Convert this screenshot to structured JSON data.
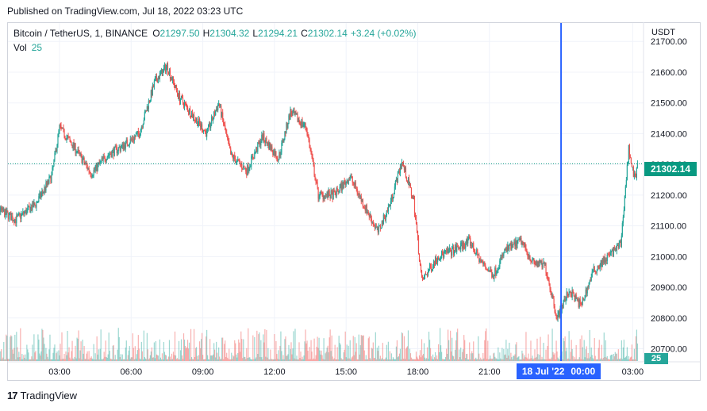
{
  "header": {
    "published_text": "Published on TradingView.com, Jul 18, 2022 03:23 UTC"
  },
  "legend": {
    "symbol": "Bitcoin / TetherUS, 1, BINANCE",
    "open_key": "O",
    "open": "21297.50",
    "high_key": "H",
    "high": "21304.32",
    "low_key": "L",
    "low": "21294.21",
    "close_key": "C",
    "close": "21302.14",
    "change": "+3.24 (+0.02%)",
    "volume_key": "Vol",
    "volume": "25"
  },
  "price_axis": {
    "currency": "USDT",
    "ticks": [
      "21700.00",
      "21600.00",
      "21500.00",
      "21400.00",
      "21300.00",
      "21200.00",
      "21100.00",
      "21000.00",
      "20900.00",
      "20800.00",
      "20700.00"
    ],
    "last_price_label": "21302.14",
    "last_volume_label": "25"
  },
  "time_axis": {
    "ticks": [
      "03:00",
      "06:00",
      "09:00",
      "12:00",
      "15:00",
      "18:00",
      "21:00",
      "00:00",
      "03:00"
    ],
    "crosshair_date": "18 Jul '22",
    "crosshair_time": "00:00"
  },
  "footer": {
    "logo_mark": "17",
    "brand": "TradingView"
  },
  "colors": {
    "up": "#26a69a",
    "down": "#ef5350",
    "crosshair": "#2962ff",
    "last_price": "#089981",
    "grid": "#f0f3fa"
  },
  "chart_data": {
    "type": "candlestick",
    "symbol": "BTCUSDT",
    "interval_minutes": 1,
    "ylim": [
      20660,
      21760
    ],
    "path_keypoints": [
      {
        "t": "00:00",
        "price": 21300
      },
      {
        "t": "00:30",
        "price": 21150
      },
      {
        "t": "01:10",
        "price": 21120
      },
      {
        "t": "02:00",
        "price": 21170
      },
      {
        "t": "02:40",
        "price": 21260
      },
      {
        "t": "03:00",
        "price": 21420
      },
      {
        "t": "03:40",
        "price": 21350
      },
      {
        "t": "04:20",
        "price": 21270
      },
      {
        "t": "05:00",
        "price": 21330
      },
      {
        "t": "05:40",
        "price": 21360
      },
      {
        "t": "06:20",
        "price": 21400
      },
      {
        "t": "07:00",
        "price": 21570
      },
      {
        "t": "07:30",
        "price": 21620
      },
      {
        "t": "08:00",
        "price": 21520
      },
      {
        "t": "08:40",
        "price": 21450
      },
      {
        "t": "09:10",
        "price": 21400
      },
      {
        "t": "09:40",
        "price": 21500
      },
      {
        "t": "10:10",
        "price": 21330
      },
      {
        "t": "10:50",
        "price": 21280
      },
      {
        "t": "11:30",
        "price": 21390
      },
      {
        "t": "12:10",
        "price": 21320
      },
      {
        "t": "12:40",
        "price": 21470
      },
      {
        "t": "13:20",
        "price": 21420
      },
      {
        "t": "13:50",
        "price": 21200
      },
      {
        "t": "14:30",
        "price": 21200
      },
      {
        "t": "15:10",
        "price": 21260
      },
      {
        "t": "15:40",
        "price": 21180
      },
      {
        "t": "16:20",
        "price": 21080
      },
      {
        "t": "16:50",
        "price": 21170
      },
      {
        "t": "17:20",
        "price": 21310
      },
      {
        "t": "17:50",
        "price": 21180
      },
      {
        "t": "18:10",
        "price": 20920
      },
      {
        "t": "18:50",
        "price": 21000
      },
      {
        "t": "19:30",
        "price": 21020
      },
      {
        "t": "20:10",
        "price": 21050
      },
      {
        "t": "20:40",
        "price": 20980
      },
      {
        "t": "21:10",
        "price": 20940
      },
      {
        "t": "21:40",
        "price": 21020
      },
      {
        "t": "22:20",
        "price": 21050
      },
      {
        "t": "22:50",
        "price": 20980
      },
      {
        "t": "23:20",
        "price": 20970
      },
      {
        "t": "23:50",
        "price": 20800
      },
      {
        "t": "00:20",
        "price": 20890
      },
      {
        "t": "00:50",
        "price": 20840
      },
      {
        "t": "01:20",
        "price": 20950
      },
      {
        "t": "01:50",
        "price": 20990
      },
      {
        "t": "02:30",
        "price": 21040
      },
      {
        "t": "02:50",
        "price": 21350
      },
      {
        "t": "03:05",
        "price": 21250
      },
      {
        "t": "03:13",
        "price": 21302.14
      }
    ],
    "last": {
      "open": 21297.5,
      "high": 21304.32,
      "low": 21294.21,
      "close": 21302.14,
      "volume": 25
    },
    "crosshair_at": "18 Jul '22 00:00"
  }
}
